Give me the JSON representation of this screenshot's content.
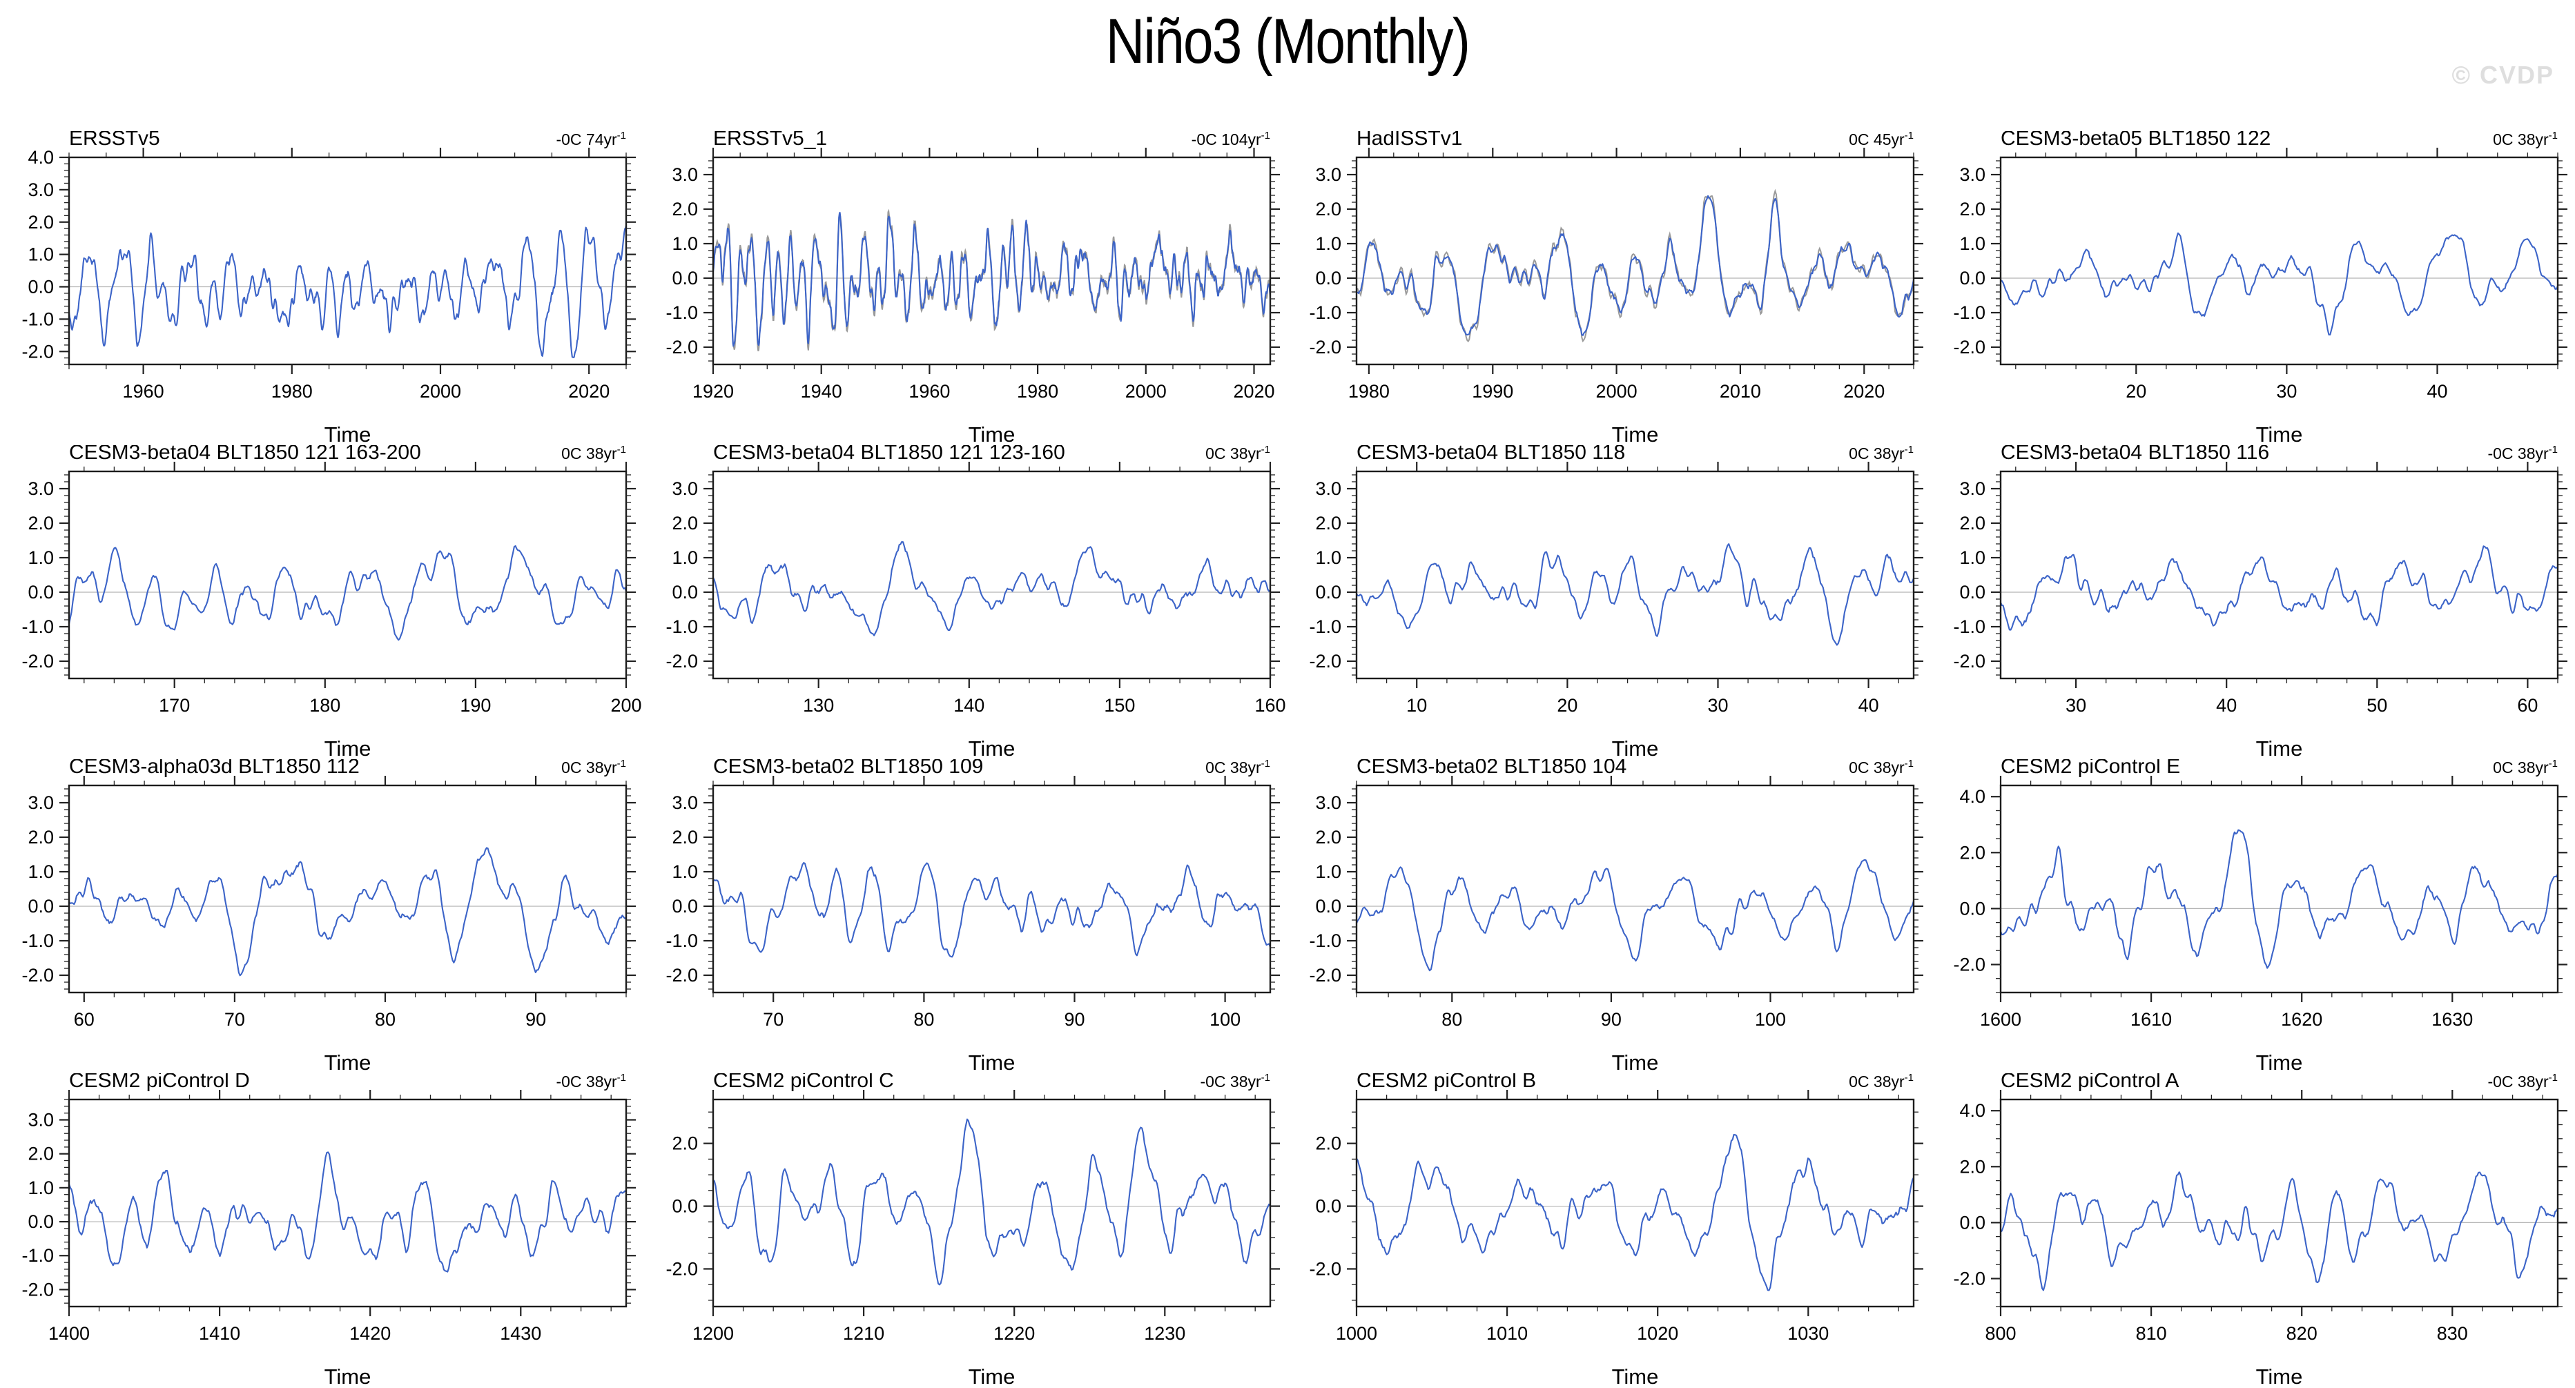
{
  "page": {
    "title": "Niño3 (Monthly)",
    "watermark": "© CVDP"
  },
  "colors": {
    "line": "#3c64c8",
    "overlay": "#9a9a9a",
    "zero_line": "#b3b3b3",
    "frame": "#1c1c1c",
    "tick": "#222222",
    "watermark": "#dedede"
  },
  "chart_data": {
    "type": "line",
    "title": "Niño3 (Monthly)",
    "xlabel": "Time",
    "grid": "zero-line only",
    "legend": "none",
    "note": "4x4 grid of monthly Nino3 SST anomaly time series (degC). Waveforms are seeded procedural approximations of the plotted monthly anomalies; axis ranges, tick labels, titles and trend annotations transcribed from the figure.",
    "panels": [
      {
        "title": "ERSSTv5",
        "trend": "-0C 74yr",
        "trend_sup": "-1",
        "xlabel": "Time",
        "x_min": 1950,
        "x_max": 2025,
        "x_ticks": [
          1960,
          1980,
          2000,
          2020
        ],
        "x_minor": 5,
        "y_min": -2.4,
        "y_max": 4.0,
        "y_ticks": [
          4.0,
          3.0,
          2.0,
          1.0,
          0.0,
          -1.0,
          -2.0
        ],
        "y_minor": 0.2,
        "seed": 11,
        "amp": 1.15,
        "overlay": false
      },
      {
        "title": "ERSSTv5_1",
        "trend": "-0C 104yr",
        "trend_sup": "-1",
        "xlabel": "Time",
        "x_min": 1920,
        "x_max": 2023,
        "x_ticks": [
          1920,
          1940,
          1960,
          1980,
          2000,
          2020
        ],
        "x_minor": 5,
        "y_min": -2.5,
        "y_max": 3.5,
        "y_ticks": [
          3.0,
          2.0,
          1.0,
          0.0,
          -1.0,
          -2.0
        ],
        "y_minor": 0.2,
        "seed": 23,
        "amp": 1.15,
        "overlay": true
      },
      {
        "title": "HadISSTv1",
        "trend": "0C 45yr",
        "trend_sup": "-1",
        "xlabel": "Time",
        "x_min": 1979,
        "x_max": 2024,
        "x_ticks": [
          1980,
          1990,
          2000,
          2010,
          2020
        ],
        "x_minor": 2,
        "y_min": -2.5,
        "y_max": 3.5,
        "y_ticks": [
          3.0,
          2.0,
          1.0,
          0.0,
          -1.0,
          -2.0
        ],
        "y_minor": 0.2,
        "seed": 37,
        "amp": 1.2,
        "overlay": true
      },
      {
        "title": "CESM3-beta05 BLT1850 122",
        "trend": "0C 38yr",
        "trend_sup": "-1",
        "xlabel": "Time",
        "x_min": 11,
        "x_max": 48,
        "x_ticks": [
          20,
          30,
          40
        ],
        "x_minor": 2,
        "y_min": -2.5,
        "y_max": 3.5,
        "y_ticks": [
          3.0,
          2.0,
          1.0,
          0.0,
          -1.0,
          -2.0
        ],
        "y_minor": 0.2,
        "seed": 41,
        "amp": 1.0,
        "overlay": false
      },
      {
        "title": "CESM3-beta04 BLT1850 121 163-200",
        "trend": "0C 38yr",
        "trend_sup": "-1",
        "xlabel": "Time",
        "x_min": 163,
        "x_max": 200,
        "x_ticks": [
          170,
          180,
          190,
          200
        ],
        "x_minor": 2,
        "y_min": -2.5,
        "y_max": 3.5,
        "y_ticks": [
          3.0,
          2.0,
          1.0,
          0.0,
          -1.0,
          -2.0
        ],
        "y_minor": 0.2,
        "seed": 53,
        "amp": 1.05,
        "overlay": false
      },
      {
        "title": "CESM3-beta04 BLT1850 121 123-160",
        "trend": "0C 38yr",
        "trend_sup": "-1",
        "xlabel": "Time",
        "x_min": 123,
        "x_max": 160,
        "x_ticks": [
          130,
          140,
          150,
          160
        ],
        "x_minor": 2,
        "y_min": -2.5,
        "y_max": 3.5,
        "y_ticks": [
          3.0,
          2.0,
          1.0,
          0.0,
          -1.0,
          -2.0
        ],
        "y_minor": 0.2,
        "seed": 67,
        "amp": 1.05,
        "overlay": false
      },
      {
        "title": "CESM3-beta04 BLT1850 118",
        "trend": "0C 38yr",
        "trend_sup": "-1",
        "xlabel": "Time",
        "x_min": 6,
        "x_max": 43,
        "x_ticks": [
          10,
          20,
          30,
          40
        ],
        "x_minor": 2,
        "y_min": -2.5,
        "y_max": 3.5,
        "y_ticks": [
          3.0,
          2.0,
          1.0,
          0.0,
          -1.0,
          -2.0
        ],
        "y_minor": 0.2,
        "seed": 71,
        "amp": 1.1,
        "overlay": false
      },
      {
        "title": "CESM3-beta04 BLT1850 116",
        "trend": "-0C 38yr",
        "trend_sup": "-1",
        "xlabel": "Time",
        "x_min": 25,
        "x_max": 62,
        "x_ticks": [
          30,
          40,
          50,
          60
        ],
        "x_minor": 2,
        "y_min": -2.5,
        "y_max": 3.5,
        "y_ticks": [
          3.0,
          2.0,
          1.0,
          0.0,
          -1.0,
          -2.0
        ],
        "y_minor": 0.2,
        "seed": 83,
        "amp": 1.05,
        "overlay": false
      },
      {
        "title": "CESM3-alpha03d BLT1850 112",
        "trend": "0C 38yr",
        "trend_sup": "-1",
        "xlabel": "Time",
        "x_min": 59,
        "x_max": 96,
        "x_ticks": [
          60,
          70,
          80,
          90
        ],
        "x_minor": 2,
        "y_min": -2.5,
        "y_max": 3.5,
        "y_ticks": [
          3.0,
          2.0,
          1.0,
          0.0,
          -1.0,
          -2.0
        ],
        "y_minor": 0.2,
        "seed": 97,
        "amp": 1.05,
        "overlay": false
      },
      {
        "title": "CESM3-beta02 BLT1850 109",
        "trend": "0C 38yr",
        "trend_sup": "-1",
        "xlabel": "Time",
        "x_min": 66,
        "x_max": 103,
        "x_ticks": [
          70,
          80,
          90,
          100
        ],
        "x_minor": 2,
        "y_min": -2.5,
        "y_max": 3.5,
        "y_ticks": [
          3.0,
          2.0,
          1.0,
          0.0,
          -1.0,
          -2.0
        ],
        "y_minor": 0.2,
        "seed": 103,
        "amp": 1.1,
        "overlay": false
      },
      {
        "title": "CESM3-beta02 BLT1850 104",
        "trend": "0C 38yr",
        "trend_sup": "-1",
        "xlabel": "Time",
        "x_min": 74,
        "x_max": 109,
        "x_ticks": [
          80,
          90,
          100
        ],
        "x_minor": 2,
        "y_min": -2.5,
        "y_max": 3.5,
        "y_ticks": [
          3.0,
          2.0,
          1.0,
          0.0,
          -1.0,
          -2.0
        ],
        "y_minor": 0.2,
        "seed": 113,
        "amp": 1.0,
        "overlay": false
      },
      {
        "title": "CESM2 piControl E",
        "trend": "0C 38yr",
        "trend_sup": "-1",
        "xlabel": "Time",
        "x_min": 1600,
        "x_max": 1637,
        "x_ticks": [
          1600,
          1610,
          1620,
          1630
        ],
        "x_minor": 2,
        "y_min": -3.0,
        "y_max": 4.4,
        "y_ticks": [
          4.0,
          2.0,
          0.0,
          -2.0
        ],
        "y_minor": 0.5,
        "seed": 127,
        "amp": 1.45,
        "overlay": false
      },
      {
        "title": "CESM2 piControl D",
        "trend": "-0C 38yr",
        "trend_sup": "-1",
        "xlabel": "Time",
        "x_min": 1400,
        "x_max": 1437,
        "x_ticks": [
          1400,
          1410,
          1420,
          1430
        ],
        "x_minor": 2,
        "y_min": -2.5,
        "y_max": 3.6,
        "y_ticks": [
          3.0,
          2.0,
          1.0,
          0.0,
          -1.0,
          -2.0
        ],
        "y_minor": 0.2,
        "seed": 131,
        "amp": 1.25,
        "overlay": false
      },
      {
        "title": "CESM2 piControl C",
        "trend": "-0C 38yr",
        "trend_sup": "-1",
        "xlabel": "Time",
        "x_min": 1200,
        "x_max": 1237,
        "x_ticks": [
          1200,
          1210,
          1220,
          1230
        ],
        "x_minor": 2,
        "y_min": -3.2,
        "y_max": 3.4,
        "y_ticks": [
          2.0,
          0.0,
          -2.0
        ],
        "y_minor": 0.5,
        "seed": 139,
        "amp": 1.45,
        "overlay": false
      },
      {
        "title": "CESM2 piControl B",
        "trend": "0C 38yr",
        "trend_sup": "-1",
        "xlabel": "Time",
        "x_min": 1000,
        "x_max": 1037,
        "x_ticks": [
          1000,
          1010,
          1020,
          1030
        ],
        "x_minor": 2,
        "y_min": -3.2,
        "y_max": 3.4,
        "y_ticks": [
          2.0,
          0.0,
          -2.0
        ],
        "y_minor": 0.5,
        "seed": 149,
        "amp": 1.4,
        "overlay": false
      },
      {
        "title": "CESM2 piControl A",
        "trend": "-0C 38yr",
        "trend_sup": "-1",
        "xlabel": "Time",
        "x_min": 800,
        "x_max": 837,
        "x_ticks": [
          800,
          810,
          820,
          830
        ],
        "x_minor": 2,
        "y_min": -3.0,
        "y_max": 4.4,
        "y_ticks": [
          4.0,
          2.0,
          0.0,
          -2.0
        ],
        "y_minor": 0.5,
        "seed": 157,
        "amp": 1.5,
        "overlay": false
      }
    ]
  }
}
